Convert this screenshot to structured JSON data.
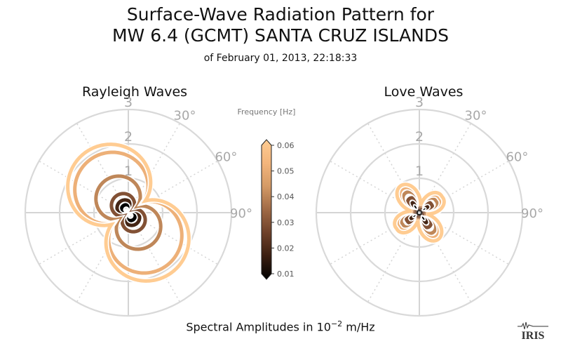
{
  "header": {
    "title_line1": "Surface-Wave Radiation Pattern for",
    "title_line2": "MW 6.4 (GCMT) SANTA CRUZ ISLANDS",
    "subtitle": "of February 01, 2013, 22:18:33"
  },
  "footer": {
    "label_prefix": "Spectral Amplitudes in ",
    "unit_base": "10",
    "unit_exp": "−2",
    "unit_suffix": " m/Hz"
  },
  "logo_text": "IRIS",
  "colorbar": {
    "label": "Frequency [Hz]",
    "ticks": [
      "0.06",
      "0.05",
      "0.04",
      "0.03",
      "0.02",
      "0.01"
    ],
    "colors": [
      "#000000",
      "#3a1e10",
      "#6e412a",
      "#a06a46",
      "#d49a66",
      "#f3b57c",
      "#ffcc92"
    ]
  },
  "chart_data": [
    {
      "type": "polar",
      "title": "Rayleigh Waves",
      "radial_ticks": [
        "1",
        "2",
        "3"
      ],
      "rlim": [
        0,
        3
      ],
      "angle_ticks": [
        "30°",
        "60°",
        "90°"
      ],
      "orientation_deg": -35,
      "pattern": "two-lobed",
      "series": [
        {
          "frequency": 0.01,
          "max_amplitude": 0.25
        },
        {
          "frequency": 0.02,
          "max_amplitude": 0.4
        },
        {
          "frequency": 0.03,
          "max_amplitude": 0.6
        },
        {
          "frequency": 0.04,
          "max_amplitude": 1.15
        },
        {
          "frequency": 0.05,
          "max_amplitude": 1.9
        },
        {
          "frequency": 0.06,
          "max_amplitude": 2.15
        }
      ]
    },
    {
      "type": "polar",
      "title": "Love Waves",
      "radial_ticks": [
        "1",
        "2",
        "3"
      ],
      "rlim": [
        0,
        3
      ],
      "angle_ticks": [
        "30°",
        "60°",
        "90°"
      ],
      "orientation_deg": -35,
      "pattern": "four-lobed",
      "series": [
        {
          "frequency": 0.01,
          "max_amplitude": 0.2
        },
        {
          "frequency": 0.02,
          "max_amplitude": 0.35
        },
        {
          "frequency": 0.03,
          "max_amplitude": 0.5
        },
        {
          "frequency": 0.04,
          "max_amplitude": 0.7
        },
        {
          "frequency": 0.05,
          "max_amplitude": 0.85
        },
        {
          "frequency": 0.06,
          "max_amplitude": 0.95
        }
      ]
    }
  ]
}
